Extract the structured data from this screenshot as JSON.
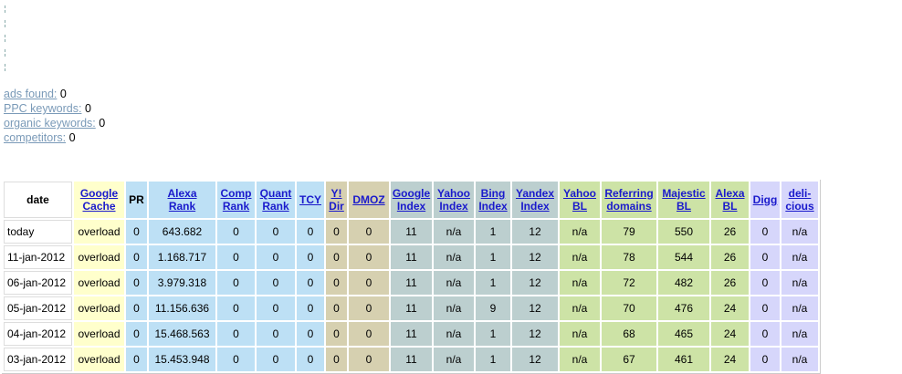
{
  "stats": [
    {
      "label": "ads found:",
      "value": "0"
    },
    {
      "label": "PPC keywords:",
      "value": "0"
    },
    {
      "label": "organic keywords:",
      "value": "0"
    },
    {
      "label": "competitors:",
      "value": "0"
    }
  ],
  "columns": [
    {
      "l1": "date",
      "l2": "",
      "link": false,
      "c": "w"
    },
    {
      "l1": "Google",
      "l2": "Cache",
      "link": true,
      "c": "y"
    },
    {
      "l1": "PR",
      "l2": "",
      "link": false,
      "c": "b"
    },
    {
      "l1": "Alexa",
      "l2": "Rank",
      "link": true,
      "c": "b"
    },
    {
      "l1": "Comp",
      "l2": "Rank",
      "link": true,
      "c": "b"
    },
    {
      "l1": "Quant",
      "l2": "Rank",
      "link": true,
      "c": "b"
    },
    {
      "l1": "TCY",
      "l2": "",
      "link": true,
      "c": "b"
    },
    {
      "l1": "Y!",
      "l2": "Dir",
      "link": true,
      "c": "t"
    },
    {
      "l1": "DMOZ",
      "l2": "",
      "link": true,
      "c": "t"
    },
    {
      "l1": "Google",
      "l2": "Index",
      "link": true,
      "c": "g"
    },
    {
      "l1": "Yahoo",
      "l2": "Index",
      "link": true,
      "c": "g"
    },
    {
      "l1": "Bing",
      "l2": "Index",
      "link": true,
      "c": "g"
    },
    {
      "l1": "Yandex",
      "l2": "Index",
      "link": true,
      "c": "g"
    },
    {
      "l1": "Yahoo",
      "l2": "BL",
      "link": true,
      "c": "gr"
    },
    {
      "l1": "Referring",
      "l2": "domains",
      "link": true,
      "c": "gr"
    },
    {
      "l1": "Majestic",
      "l2": "BL",
      "link": true,
      "c": "gr"
    },
    {
      "l1": "Alexa",
      "l2": "BL",
      "link": true,
      "c": "gr"
    },
    {
      "l1": "Digg",
      "l2": "",
      "link": true,
      "c": "l"
    },
    {
      "l1": "deli-",
      "l2": "cious",
      "link": true,
      "c": "l"
    }
  ],
  "rows": [
    [
      "today",
      "overload",
      "0",
      "643.682",
      "0",
      "0",
      "0",
      "0",
      "0",
      "11",
      "n/a",
      "1",
      "12",
      "n/a",
      "79",
      "550",
      "26",
      "0",
      "n/a"
    ],
    [
      "11-jan-2012",
      "overload",
      "0",
      "1.168.717",
      "0",
      "0",
      "0",
      "0",
      "0",
      "11",
      "n/a",
      "1",
      "12",
      "n/a",
      "78",
      "544",
      "26",
      "0",
      "n/a"
    ],
    [
      "06-jan-2012",
      "overload",
      "0",
      "3.979.318",
      "0",
      "0",
      "0",
      "0",
      "0",
      "11",
      "n/a",
      "1",
      "12",
      "n/a",
      "72",
      "482",
      "26",
      "0",
      "n/a"
    ],
    [
      "05-jan-2012",
      "overload",
      "0",
      "11.156.636",
      "0",
      "0",
      "0",
      "0",
      "0",
      "11",
      "n/a",
      "9",
      "12",
      "n/a",
      "70",
      "476",
      "24",
      "0",
      "n/a"
    ],
    [
      "04-jan-2012",
      "overload",
      "0",
      "15.468.563",
      "0",
      "0",
      "0",
      "0",
      "0",
      "11",
      "n/a",
      "1",
      "12",
      "n/a",
      "68",
      "465",
      "24",
      "0",
      "n/a"
    ],
    [
      "03-jan-2012",
      "overload",
      "0",
      "15.453.948",
      "0",
      "0",
      "0",
      "0",
      "0",
      "11",
      "n/a",
      "1",
      "12",
      "n/a",
      "67",
      "461",
      "24",
      "0",
      "n/a"
    ]
  ]
}
